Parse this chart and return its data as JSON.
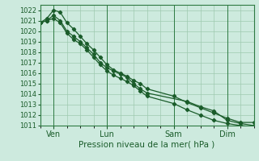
{
  "title": "",
  "xlabel": "Pression niveau de la mer( hPa )",
  "ylabel": "",
  "bg_color": "#cdeade",
  "grid_color": "#9ec9b0",
  "line_color": "#1a5c2a",
  "spine_color": "#2d7a42",
  "xlim": [
    0,
    96
  ],
  "ylim": [
    1011,
    1022.5
  ],
  "yticks": [
    1011,
    1012,
    1013,
    1014,
    1015,
    1016,
    1017,
    1018,
    1019,
    1020,
    1021,
    1022
  ],
  "xtick_positions": [
    6,
    30,
    60,
    84
  ],
  "xtick_labels": [
    "Ven",
    "Lun",
    "Sam",
    "Dim"
  ],
  "series1_x": [
    0,
    3,
    6,
    9,
    12,
    15,
    18,
    21,
    24,
    27,
    30,
    33,
    36,
    39,
    42,
    45,
    48,
    66,
    72,
    78,
    84,
    90,
    96
  ],
  "series1_y": [
    1020.8,
    1021.0,
    1021.5,
    1021.0,
    1020.0,
    1019.5,
    1019.0,
    1018.4,
    1017.8,
    1017.0,
    1016.5,
    1016.2,
    1015.9,
    1015.6,
    1015.0,
    1014.5,
    1014.1,
    1013.3,
    1012.8,
    1012.4,
    1011.5,
    1011.2,
    1011.0
  ],
  "series2_x": [
    0,
    3,
    6,
    9,
    12,
    15,
    18,
    21,
    24,
    27,
    30,
    33,
    36,
    39,
    42,
    45,
    48,
    60,
    66,
    72,
    78,
    84,
    90,
    96
  ],
  "series2_y": [
    1020.8,
    1021.2,
    1022.0,
    1021.8,
    1020.8,
    1020.2,
    1019.5,
    1018.8,
    1018.2,
    1017.5,
    1016.8,
    1016.3,
    1016.0,
    1015.7,
    1015.3,
    1015.0,
    1014.5,
    1013.8,
    1013.2,
    1012.7,
    1012.2,
    1011.7,
    1011.3,
    1011.3
  ],
  "series3_x": [
    0,
    3,
    6,
    9,
    12,
    15,
    18,
    21,
    24,
    27,
    30,
    33,
    36,
    39,
    42,
    45,
    48,
    60,
    66,
    72,
    78,
    84,
    90,
    96
  ],
  "series3_y": [
    1020.8,
    1021.0,
    1021.2,
    1020.8,
    1019.8,
    1019.2,
    1018.8,
    1018.2,
    1017.5,
    1016.8,
    1016.2,
    1015.8,
    1015.5,
    1015.2,
    1014.8,
    1014.3,
    1013.8,
    1013.1,
    1012.5,
    1012.0,
    1011.5,
    1011.2,
    1011.0,
    1010.9
  ]
}
